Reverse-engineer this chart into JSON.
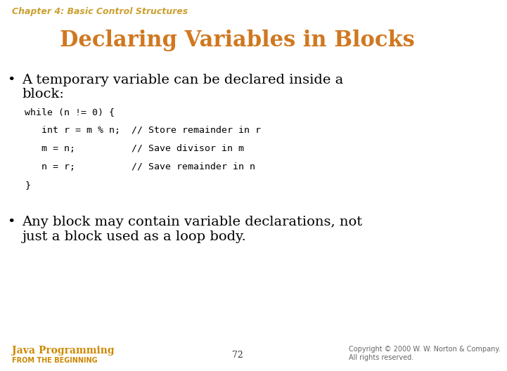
{
  "background_color": "#ffffff",
  "chapter_text": "Chapter 4: Basic Control Structures",
  "chapter_color": "#CCA030",
  "chapter_fontsize": 9,
  "title_text": "Declaring Variables in Blocks",
  "title_color": "#D07820",
  "title_fontsize": 22,
  "bullet_fontsize": 14,
  "bullet_color": "#000000",
  "bullet1_line1": "A temporary variable can be declared inside a",
  "bullet1_line2": "block:",
  "code_lines": [
    "while (n != 0) {",
    "   int r = m % n;  // Store remainder in r",
    "   m = n;          // Save divisor in m",
    "   n = r;          // Save remainder in n",
    "}"
  ],
  "code_color": "#000000",
  "code_fontsize": 9.5,
  "bullet2_line1": "Any block may contain variable declarations, not",
  "bullet2_line2": "just a block used as a loop body.",
  "footer_left": "Java Programming",
  "footer_left_sub": "FROM THE BEGINNING",
  "footer_left_color": "#CC8800",
  "footer_center": "72",
  "footer_right_line1": "Copyright © 2000 W. W. Norton & Company.",
  "footer_right_line2": "All rights reserved.",
  "footer_fontsize": 8
}
